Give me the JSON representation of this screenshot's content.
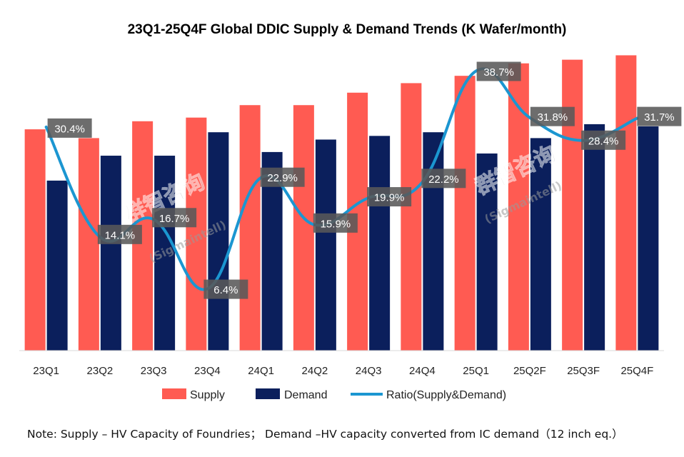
{
  "chart_data": {
    "type": "bar",
    "title": "23Q1-25Q4F Global DDIC Supply & Demand Trends (K Wafer/month)",
    "categories": [
      "23Q1",
      "23Q2",
      "23Q3",
      "23Q4",
      "24Q1",
      "24Q2",
      "24Q3",
      "24Q4",
      "25Q1",
      "25Q2F",
      "25Q3F",
      "25Q4F"
    ],
    "series": [
      {
        "name": "Supply",
        "kind": "bar",
        "color": "#FF5B52",
        "values": [
          302,
          290,
          313,
          318,
          335,
          335,
          352,
          365,
          375,
          392,
          397,
          403
        ]
      },
      {
        "name": "Demand",
        "kind": "bar",
        "color": "#0B1F5C",
        "values": [
          232,
          266,
          266,
          298,
          271,
          288,
          293,
          298,
          269,
          290,
          309,
          306
        ]
      },
      {
        "name": "Ratio(Supply&Demand)",
        "kind": "line",
        "color": "#1B96D1",
        "values": [
          30.4,
          14.1,
          16.7,
          6.4,
          22.9,
          15.9,
          19.9,
          22.2,
          38.7,
          31.8,
          28.4,
          31.7
        ],
        "labels": [
          "30.4%",
          "14.1%",
          "16.7%",
          "6.4%",
          "22.9%",
          "15.9%",
          "19.9%",
          "22.2%",
          "38.7%",
          "31.8%",
          "28.4%",
          "31.7%"
        ]
      }
    ],
    "ylim": [
      0,
      420
    ],
    "ratio_ylim": [
      0,
      45
    ],
    "legend_position": "bottom"
  },
  "watermark": {
    "cn": "群智咨询",
    "en": "(Sigmaintell)"
  },
  "note": "Note: Supply – HV Capacity of Foundries；  Demand –HV capacity converted from IC demand（12 inch eq.）"
}
